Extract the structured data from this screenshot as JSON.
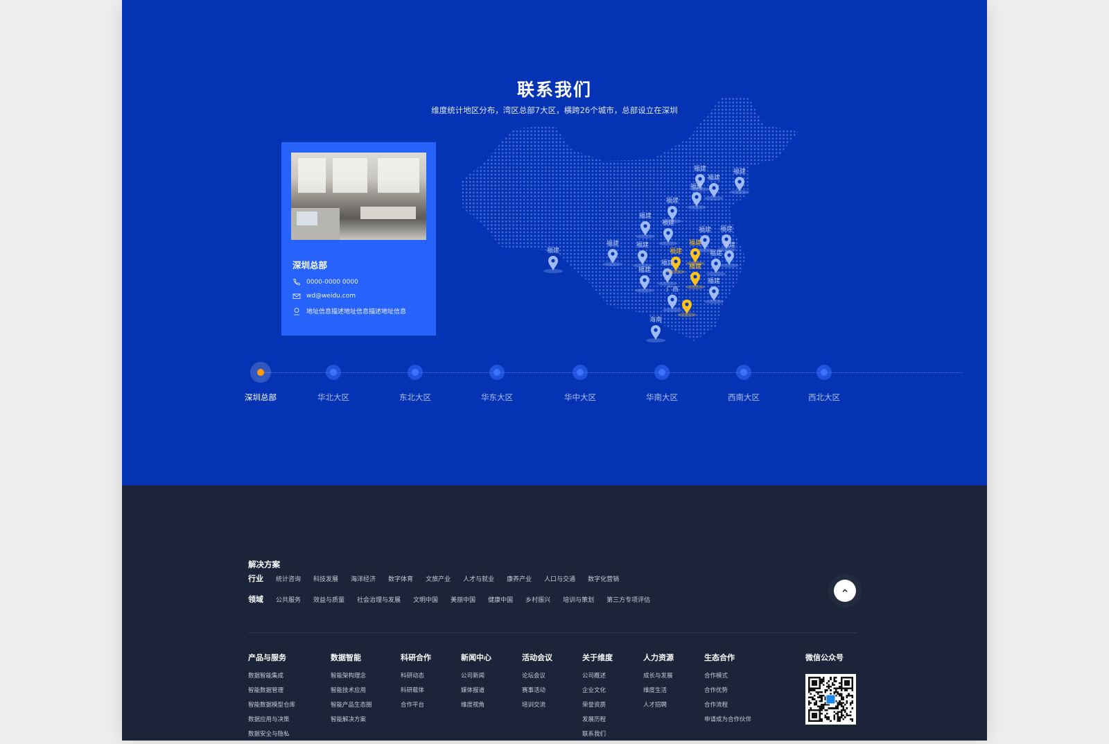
{
  "contact": {
    "title": "联系我们",
    "subtitle": "维度统计地区分布，湾区总部7大区，横跨26个城市，总部设立在深圳",
    "card": {
      "title": "深圳总部",
      "phone": "0000-0000 0000",
      "email": "wd@weidu.com",
      "address": "地址信息描述地址信息描述地址信息"
    },
    "map_pins": [
      {
        "label": "福建",
        "highlight": false
      },
      {
        "label": "福建",
        "highlight": false
      },
      {
        "label": "福建",
        "highlight": false
      },
      {
        "label": "福建",
        "highlight": false
      },
      {
        "label": "福建",
        "highlight": false
      },
      {
        "label": "福建",
        "highlight": false
      },
      {
        "label": "福建",
        "highlight": false
      },
      {
        "label": "福建",
        "highlight": false
      },
      {
        "label": "福建",
        "highlight": false
      },
      {
        "label": "福建",
        "highlight": false
      },
      {
        "label": "福建",
        "highlight": false
      },
      {
        "label": "福建",
        "highlight": false
      },
      {
        "label": "福建",
        "highlight": false
      },
      {
        "label": "福建",
        "highlight": false
      },
      {
        "label": "福建",
        "highlight": false
      },
      {
        "label": "福建",
        "highlight": false
      },
      {
        "label": "福建",
        "highlight": false
      },
      {
        "label": "广西",
        "highlight": false
      },
      {
        "label": "海南",
        "highlight": false
      },
      {
        "label": "福建",
        "highlight": true
      },
      {
        "label": "福建",
        "highlight": true
      },
      {
        "label": "福建",
        "highlight": true
      },
      {
        "label": "",
        "highlight": true
      }
    ],
    "regions": [
      {
        "label": "深圳总部",
        "active": true
      },
      {
        "label": "华北大区",
        "active": false
      },
      {
        "label": "东北大区",
        "active": false
      },
      {
        "label": "华东大区",
        "active": false
      },
      {
        "label": "华中大区",
        "active": false
      },
      {
        "label": "华南大区",
        "active": false
      },
      {
        "label": "西南大区",
        "active": false
      },
      {
        "label": "西北大区",
        "active": false
      }
    ],
    "colors": {
      "background": "#0433b4",
      "card": "#2762fb",
      "active": "#ff9d00",
      "pin": "#9fbaf5",
      "pin_highlight": "#ffc21a"
    }
  },
  "footer": {
    "solutions_title": "解决方案",
    "industry": {
      "label": "行业",
      "items": [
        "统计咨询",
        "科技发展",
        "海洋经济",
        "数字体育",
        "文旅产业",
        "人才与就业",
        "康养产业",
        "人口与交通",
        "数字化营销"
      ]
    },
    "domain": {
      "label": "领域",
      "items": [
        "公共服务",
        "效益与质量",
        "社会治理与发展",
        "文明中国",
        "美丽中国",
        "健康中国",
        "乡村振兴",
        "培训与策划",
        "第三方专项评估"
      ]
    },
    "columns": [
      {
        "title": "产品与服务",
        "items": [
          "数据智能集成",
          "智能数据管理",
          "智能数据模型仓库",
          "数据应用与决策",
          "数据安全与隐私"
        ]
      },
      {
        "title": "数据智能",
        "items": [
          "智能架构理念",
          "智能技术应用",
          "智能产品生态圈",
          "智能解决方案"
        ]
      },
      {
        "title": "科研合作",
        "items": [
          "科研动态",
          "科研载体",
          "合作平台"
        ]
      },
      {
        "title": "新闻中心",
        "items": [
          "公司新闻",
          "媒体报道",
          "维度视角"
        ]
      },
      {
        "title": "活动会议",
        "items": [
          "论坛会议",
          "赛事活动",
          "培训交流"
        ]
      },
      {
        "title": "关于维度",
        "items": [
          "公司概述",
          "企业文化",
          "荣誉资质",
          "发展历程",
          "联系我们"
        ]
      },
      {
        "title": "人力资源",
        "items": [
          "成长与发展",
          "维度生活",
          "人才招聘"
        ]
      },
      {
        "title": "生态合作",
        "items": [
          "合作模式",
          "合作优势",
          "合作流程",
          "申请成为合作伙伴"
        ]
      }
    ],
    "wechat_title": "微信公众号",
    "back_to_top_icon": "chevron-up-icon",
    "colors": {
      "background": "#1b2438"
    }
  }
}
